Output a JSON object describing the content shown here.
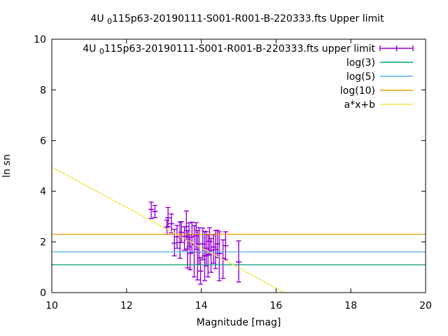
{
  "chart_data": {
    "type": "scatter",
    "title": {
      "pre": "4U ",
      "sub": "0",
      "post": "115p63-20190111-S001-R001-B-220333.fts Upper limit"
    },
    "xlabel": "Magnitude [mag]",
    "ylabel": "ln sn",
    "xlim": [
      10,
      20
    ],
    "ylim": [
      0,
      10
    ],
    "xticks": [
      10,
      12,
      14,
      16,
      18,
      20
    ],
    "yticks": [
      0,
      2,
      4,
      6,
      8,
      10
    ],
    "grid": false,
    "legend_position": "top-right-inside",
    "series": [
      {
        "type": "errorbars",
        "label_pre": "4U ",
        "label_sub": "0",
        "label_post": "115p63-20190111-S001-R001-B-220333.fts upper limit",
        "color": "#9400d3",
        "points": [
          [
            12.66,
            3.28,
            2.92,
            3.57
          ],
          [
            12.76,
            3.2,
            2.96,
            3.44
          ],
          [
            13.08,
            2.58,
            2.3,
            2.86
          ],
          [
            13.11,
            2.95,
            2.6,
            3.36
          ],
          [
            13.2,
            2.72,
            2.36,
            3.1
          ],
          [
            13.28,
            1.95,
            1.45,
            2.5
          ],
          [
            13.35,
            2.2,
            1.75,
            2.65
          ],
          [
            13.43,
            1.98,
            1.35,
            2.78
          ],
          [
            13.47,
            2.38,
            1.98,
            2.8
          ],
          [
            13.55,
            2.22,
            1.67,
            2.6
          ],
          [
            13.6,
            2.6,
            2.08,
            3.22
          ],
          [
            13.63,
            1.72,
            0.97,
            2.45
          ],
          [
            13.67,
            2.28,
            1.8,
            2.75
          ],
          [
            13.7,
            1.55,
            0.9,
            2.2
          ],
          [
            13.75,
            2.2,
            1.58,
            2.78
          ],
          [
            13.81,
            1.9,
            0.62,
            2.64
          ],
          [
            13.86,
            2.25,
            1.7,
            2.76
          ],
          [
            13.9,
            1.6,
            0.5,
            2.45
          ],
          [
            13.94,
            1.92,
            1.1,
            2.56
          ],
          [
            13.98,
            0.85,
            0.33,
            1.38
          ],
          [
            14.04,
            1.92,
            1.3,
            2.55
          ],
          [
            14.09,
            1.45,
            0.47,
            2.42
          ],
          [
            14.13,
            1.75,
            1.05,
            2.4
          ],
          [
            14.18,
            1.5,
            0.62,
            2.28
          ],
          [
            14.22,
            2.02,
            1.48,
            2.56
          ],
          [
            14.26,
            1.67,
            0.8,
            2.14
          ],
          [
            14.33,
            1.8,
            1.16,
            2.28
          ],
          [
            14.38,
            1.7,
            0.95,
            2.45
          ],
          [
            14.43,
            1.92,
            1.38,
            2.46
          ],
          [
            14.48,
            1.55,
            0.47,
            2.4
          ],
          [
            14.58,
            1.35,
            0.56,
            2.08
          ],
          [
            14.65,
            1.85,
            1.3,
            2.4
          ],
          [
            15.0,
            1.21,
            0.42,
            2.04
          ]
        ]
      },
      {
        "type": "hline",
        "label": "log(3)",
        "color": "#009e73",
        "y": 1.0986
      },
      {
        "type": "hline",
        "label": "log(5)",
        "color": "#56b4e9",
        "y": 1.6094
      },
      {
        "type": "hline",
        "label": "log(10)",
        "color": "#e69f00",
        "y": 2.3026
      },
      {
        "type": "line",
        "label": "a*x+b",
        "color": "#f0e442",
        "x1": 10,
        "y1": 4.95,
        "x2": 16.23,
        "y2": 0
      }
    ]
  }
}
